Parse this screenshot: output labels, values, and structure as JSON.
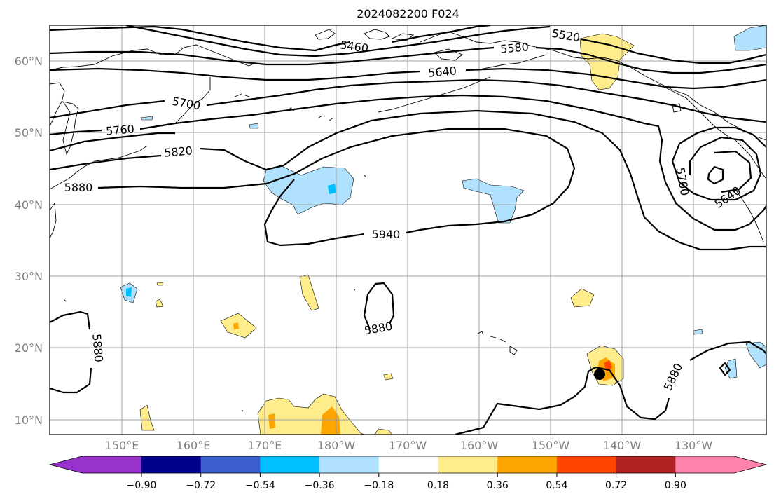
{
  "title": "2024082200 F024",
  "latitude_labels": [
    "60°N",
    "50°N",
    "40°N",
    "30°N",
    "20°N",
    "10°N"
  ],
  "longitude_labels": [
    "150°E",
    "160°E",
    "170°E",
    "180°W",
    "170°W",
    "160°W",
    "150°W",
    "140°W",
    "130°W"
  ],
  "contour_labels": [
    "5460",
    "5520",
    "5580",
    "5640",
    "5700",
    "5760",
    "5820",
    "5880",
    "5940",
    "5880",
    "5880",
    "5880",
    "5700",
    "5640"
  ],
  "colorbar": {
    "ticks": [
      "−0.90",
      "−0.72",
      "−0.54",
      "−0.36",
      "−0.18",
      "0.18",
      "0.36",
      "0.54",
      "0.72",
      "0.90"
    ],
    "colors": [
      "#9932cc",
      "#00008b",
      "#3a5fcd",
      "#00bfff",
      "#b0e2ff",
      "#ffffff",
      "#ffec8b",
      "#ffa500",
      "#ff4500",
      "#b22222",
      "#ff82ab"
    ]
  },
  "shading_colors": {
    "light_blue": "#b0e2ff",
    "deep_sky_blue": "#00bfff",
    "light_yellow": "#ffec8b",
    "orange": "#ffa500",
    "orange_red": "#ff4500"
  },
  "marker": "storm-position-dot"
}
